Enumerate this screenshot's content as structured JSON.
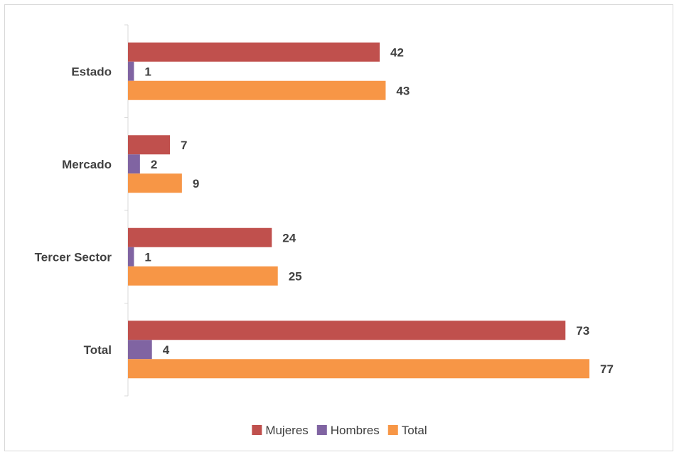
{
  "chart_data": {
    "type": "bar",
    "orientation": "horizontal",
    "categories": [
      "Estado",
      "Mercado",
      "Tercer Sector",
      "Total"
    ],
    "series": [
      {
        "name": "Mujeres",
        "color": "#c0504d",
        "values": [
          42,
          7,
          24,
          73
        ]
      },
      {
        "name": "Hombres",
        "color": "#8064a2",
        "values": [
          1,
          2,
          1,
          4
        ]
      },
      {
        "name": "Total",
        "color": "#f79646",
        "values": [
          43,
          9,
          25,
          77
        ]
      }
    ],
    "xlim": [
      0,
      77
    ],
    "grid": false,
    "data_labels": true,
    "legend_position": "bottom"
  }
}
